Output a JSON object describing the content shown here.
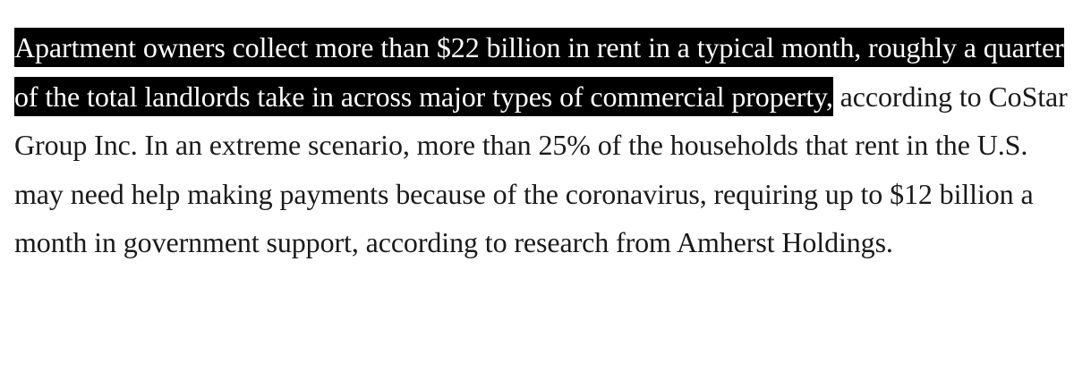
{
  "article": {
    "highlighted_text": "Apartment owners collect more than $22 billion in rent in a typical month, roughly a quarter of the total landlords take in across major types of commercial property,",
    "rest_text": " according to CoStar Group Inc. In an extreme scenario, more than 25% of the households that rent in the U.S. may need help making payments because of the coronavirus, requiring up to $12 billion a month in government support, according to research from Amherst Holdings."
  },
  "colors": {
    "highlight_background": "#000000",
    "highlight_text": "#ffffff",
    "body_text": "#1a1a1a",
    "page_background": "#ffffff"
  }
}
